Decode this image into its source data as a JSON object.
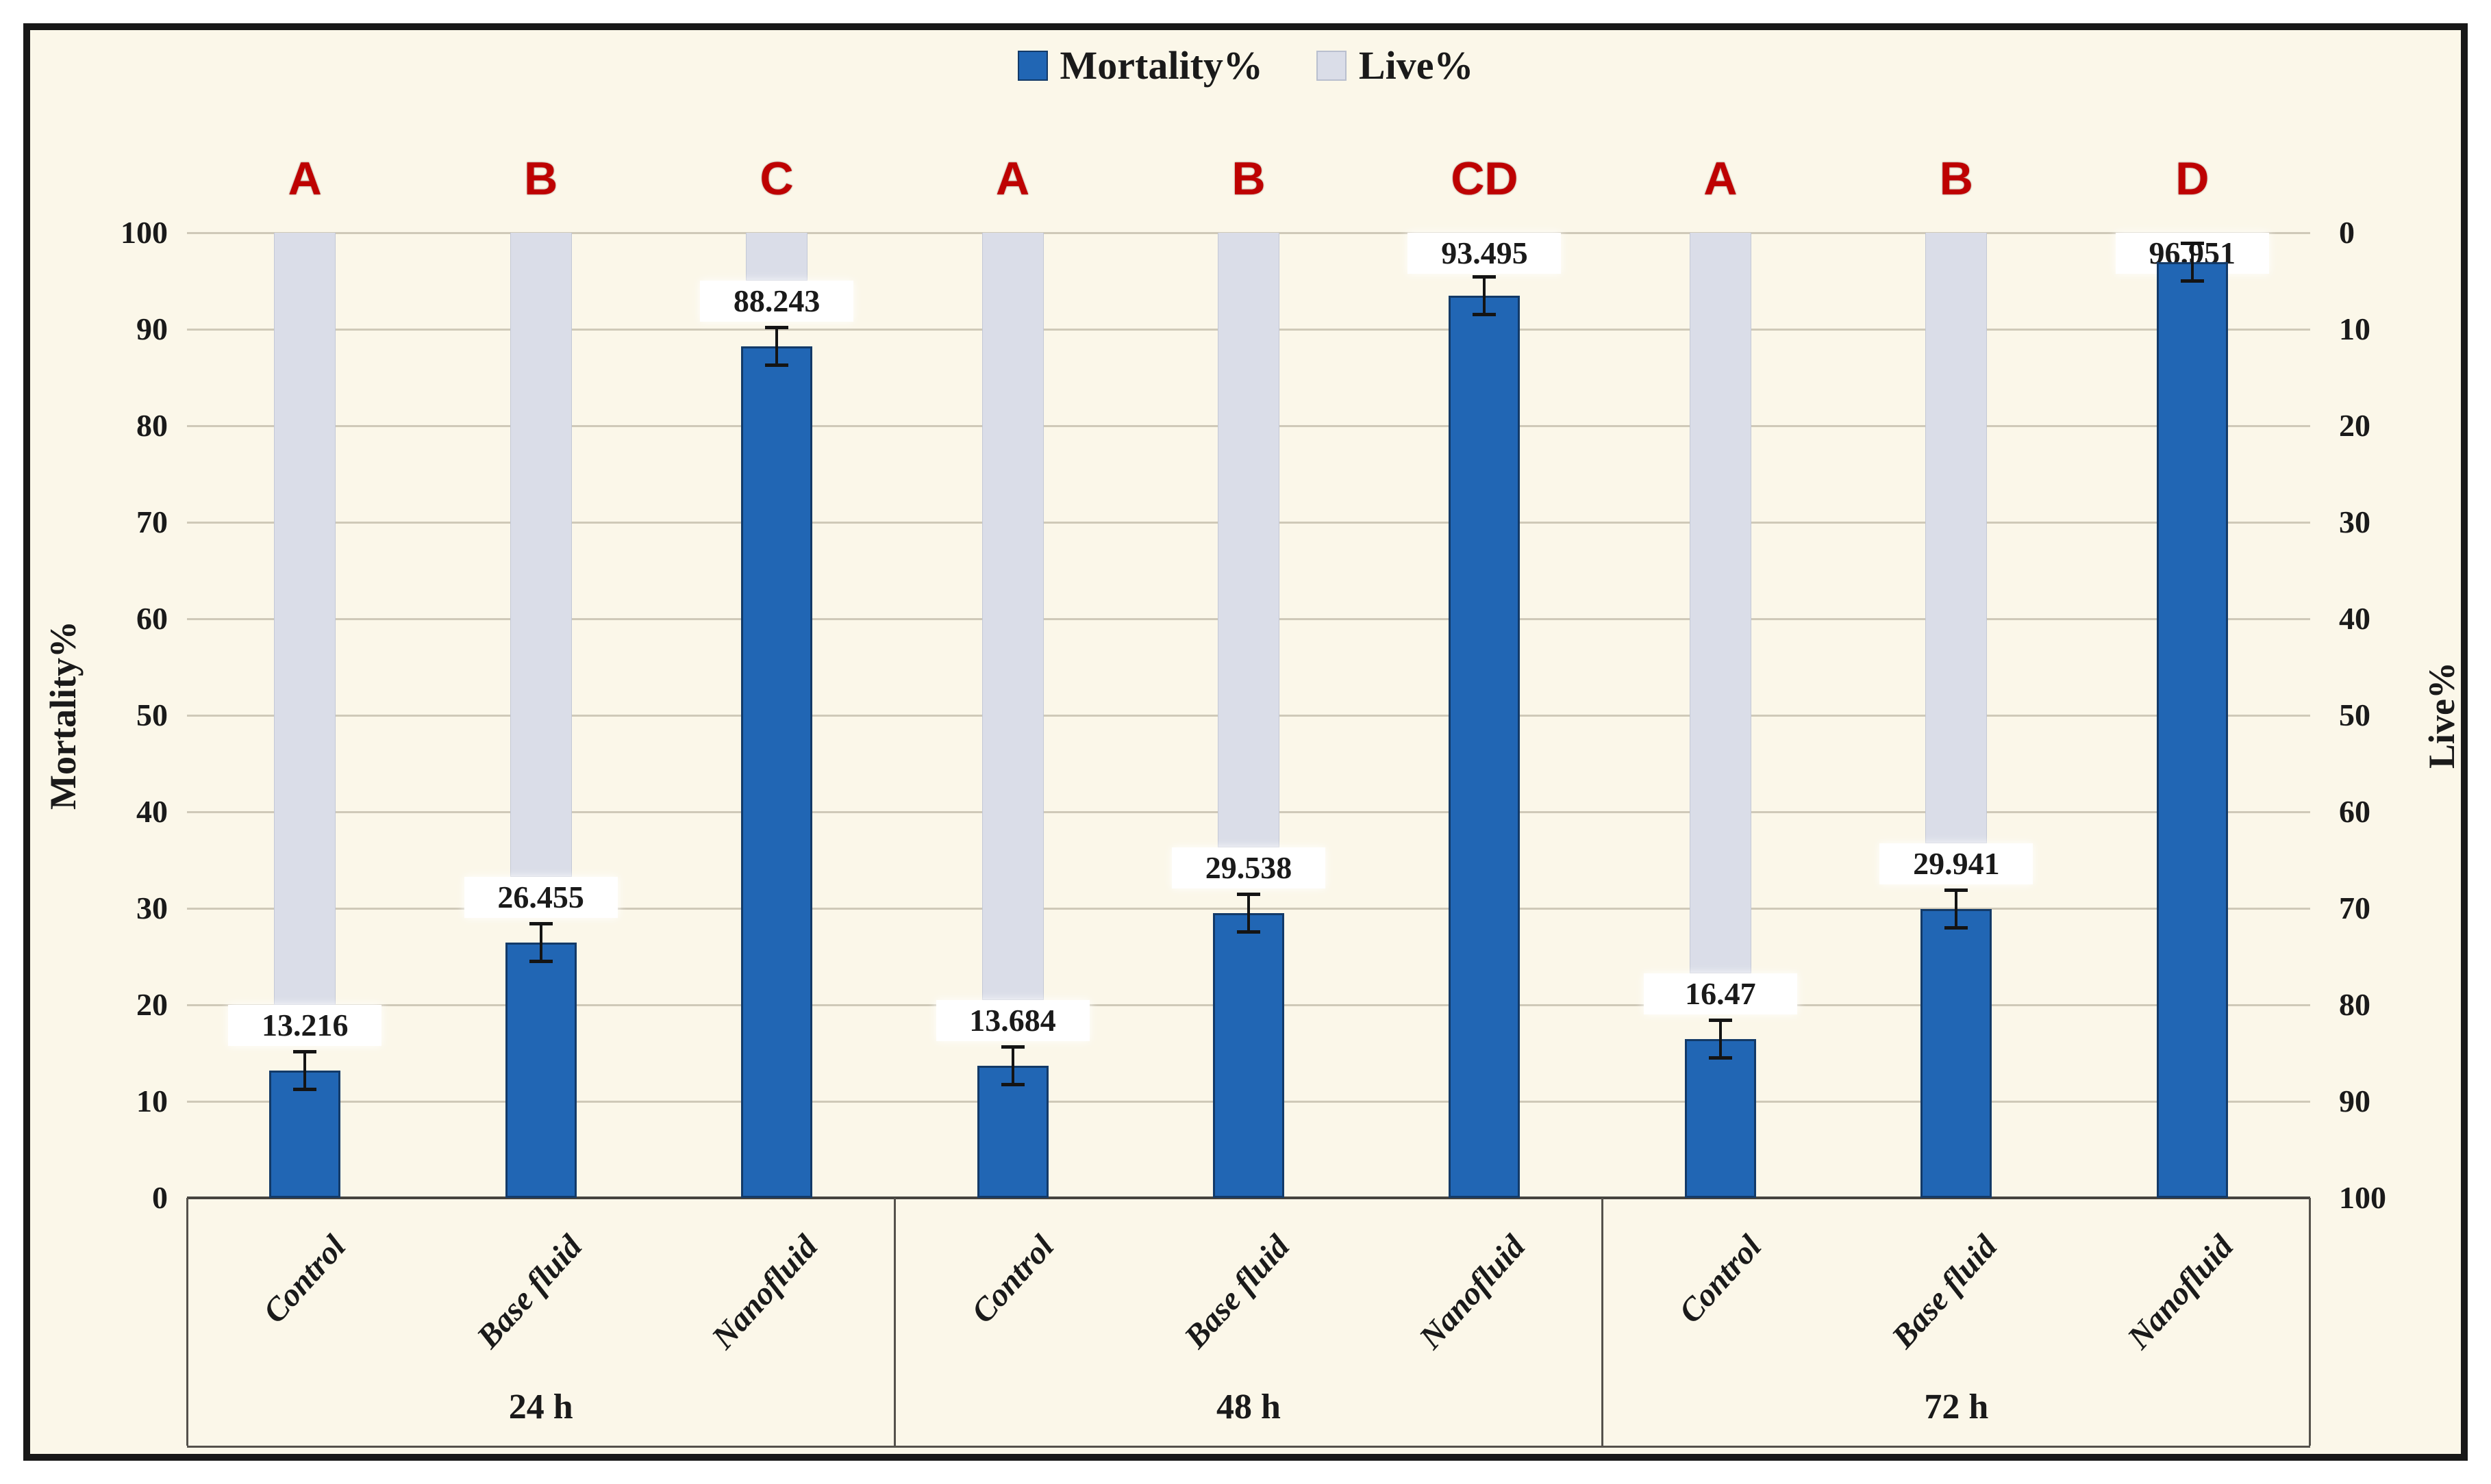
{
  "figure": {
    "background": "#ffffff",
    "frame_color": "#181818",
    "plot_background": "#fbf7e9",
    "gridline_color": "#cfc9b8",
    "axis_line_color": "#46443f",
    "box_line_color": "#55524c",
    "text_color": "#1a1a1a",
    "significance_letter_color": "#be0202"
  },
  "legend": {
    "items": [
      {
        "label": "Mortality%",
        "swatch_color": "#2166b4",
        "swatch_border": "#133a68"
      },
      {
        "label": "Live%",
        "swatch_color": "#dadde8",
        "swatch_border": "#b9bfce"
      }
    ]
  },
  "axes": {
    "left": {
      "title": "Mortality%",
      "ticks": [
        100,
        90,
        80,
        70,
        60,
        50,
        40,
        30,
        20,
        10,
        0
      ]
    },
    "right": {
      "title": "Live%",
      "ticks": [
        0,
        10,
        20,
        30,
        40,
        50,
        60,
        70,
        80,
        90,
        100
      ]
    }
  },
  "chart_data": {
    "type": "bar",
    "stacked": true,
    "grid": "horizontal",
    "ylim": [
      0,
      100
    ],
    "legend_position": "top-center",
    "has_error_bars": true,
    "series": [
      {
        "name": "Mortality%",
        "color": "#2166b4",
        "border": "#133a68"
      },
      {
        "name": "Live%",
        "color": "#dadde8",
        "border": "#c3c8d6"
      }
    ],
    "groups": [
      {
        "label": "24 h",
        "categories": [
          "Control",
          "Base fluid",
          "Nanofluid"
        ],
        "mortality": [
          13.216,
          26.455,
          88.243
        ],
        "live": [
          86.784,
          73.545,
          11.757
        ],
        "value_labels": [
          "13.216",
          "26.455",
          "88.243"
        ],
        "letters": [
          "A",
          "B",
          "C"
        ]
      },
      {
        "label": "48 h",
        "categories": [
          "Control",
          "Base fluid",
          "Nanofluid"
        ],
        "mortality": [
          13.684,
          29.538,
          93.495
        ],
        "live": [
          86.316,
          70.462,
          6.505
        ],
        "value_labels": [
          "13.684",
          "29.538",
          "93.495"
        ],
        "letters": [
          "A",
          "B",
          "CD"
        ]
      },
      {
        "label": "72 h",
        "categories": [
          "Control",
          "Base fluid",
          "Nanofluid"
        ],
        "mortality": [
          16.47,
          29.941,
          96.951
        ],
        "live": [
          83.53,
          70.059,
          3.049
        ],
        "value_labels": [
          "16.47",
          "29.941",
          "96.951"
        ],
        "letters": [
          "A",
          "B",
          "D"
        ]
      }
    ]
  }
}
